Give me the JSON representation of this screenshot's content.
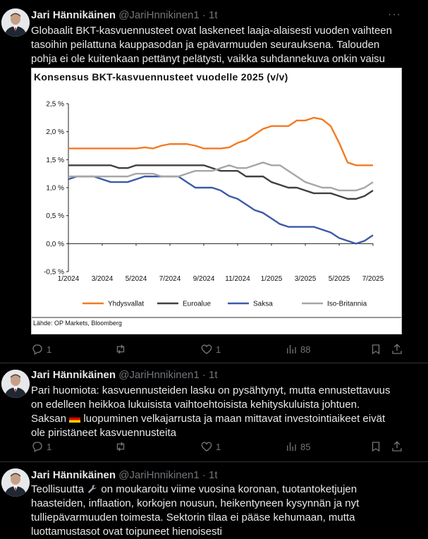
{
  "tweets": [
    {
      "author": "Jari Hännikäinen",
      "handle": "@JariHnnikinen1",
      "time": "· 1t",
      "text": "Globaalit BKT-kasvuennusteet ovat laskeneet laaja-alaisesti vuoden vaihteen tasoihin peilattuna kauppasodan ja epävarmuuden seurauksena. Talouden pohja ei ole kuitenkaan pettänyt pelätysti, vaikka suhdannekuva onkin vaisu",
      "replies": "1",
      "reposts": "",
      "likes": "1",
      "views": "88"
    },
    {
      "author": "Jari Hännikäinen",
      "handle": "@JariHnnikinen1",
      "time": "· 1t",
      "text_before_flag": "Pari huomiota: kasvuennusteiden lasku on pysähtynyt, mutta ennustettavuus on edelleen heikkoa lukuisista vaihtoehtoisista kehityskuluista johtuen. Saksan",
      "flag_icon": "germany-flag-icon",
      "text_after_flag": "luopuminen velkajarrusta ja maan mittavat investointiaikeet eivät ole piristäneet kasvuennusteita",
      "replies": "1",
      "reposts": "",
      "likes": "1",
      "views": "85"
    },
    {
      "author": "Jari Hännikäinen",
      "handle": "@JariHnnikinen1",
      "time": "· 1t",
      "text_before_icon": "Teollisuutta",
      "inline_icon": "wrench-icon",
      "text_after_icon": "on moukaroitu viime vuosina koronan, tuotantoketjujen haasteiden, inflaation, korkojen nousun, heikentyneen kysynnän ja nyt tulliepävarmuuden toimesta. Sektorin tilaa ei pääse kehumaan, mutta luottamustasot ovat toipuneet hienoisesti"
    }
  ],
  "chart_data": {
    "type": "line",
    "title": "Konsensus BKT-kasvuennusteet vuodelle 2025 (v/v)",
    "source": "Lähde: OP Markets, Bloomberg",
    "x_labels": [
      "1/2024",
      "3/2024",
      "5/2024",
      "7/2024",
      "9/2024",
      "11/2024",
      "1/2025",
      "3/2025",
      "5/2025",
      "7/2025"
    ],
    "y_ticks": [
      "2,5 %",
      "2,0 %",
      "1,5 %",
      "1,0 %",
      "0,5 %",
      "0,0 %",
      "-0,5 %"
    ],
    "ylim": [
      -0.5,
      2.5
    ],
    "grid": false,
    "legend_position": "bottom",
    "x": [
      0,
      0.5,
      1,
      1.5,
      2,
      2.5,
      3,
      3.5,
      4,
      4.5,
      5,
      5.5,
      6,
      6.5,
      7,
      7.5,
      8,
      8.5,
      9,
      9.5,
      10,
      10.5,
      11,
      11.5,
      12,
      12.5,
      13,
      13.5,
      14,
      14.5,
      15,
      15.5,
      16,
      16.5,
      17,
      17.5,
      18
    ],
    "series": [
      {
        "name": "Yhdysvallat",
        "color": "#f47a20",
        "values": [
          1.7,
          1.7,
          1.7,
          1.7,
          1.7,
          1.7,
          1.7,
          1.7,
          1.7,
          1.72,
          1.7,
          1.75,
          1.78,
          1.78,
          1.78,
          1.75,
          1.7,
          1.7,
          1.7,
          1.72,
          1.8,
          1.85,
          1.95,
          2.05,
          2.1,
          2.1,
          2.1,
          2.2,
          2.2,
          2.25,
          2.22,
          2.1,
          1.8,
          1.45,
          1.4,
          1.4,
          1.4
        ]
      },
      {
        "name": "Euroalue",
        "color": "#404040",
        "values": [
          1.4,
          1.4,
          1.4,
          1.4,
          1.4,
          1.4,
          1.35,
          1.35,
          1.4,
          1.4,
          1.4,
          1.4,
          1.4,
          1.4,
          1.4,
          1.4,
          1.4,
          1.35,
          1.3,
          1.3,
          1.3,
          1.2,
          1.2,
          1.2,
          1.1,
          1.05,
          1.0,
          1.0,
          0.95,
          0.9,
          0.9,
          0.9,
          0.85,
          0.8,
          0.8,
          0.85,
          0.95
        ]
      },
      {
        "name": "Saksa",
        "color": "#3a5ba8",
        "values": [
          1.15,
          1.2,
          1.2,
          1.2,
          1.15,
          1.1,
          1.1,
          1.1,
          1.15,
          1.2,
          1.2,
          1.2,
          1.2,
          1.2,
          1.1,
          1.0,
          1.0,
          1.0,
          0.95,
          0.85,
          0.8,
          0.7,
          0.6,
          0.55,
          0.45,
          0.35,
          0.3,
          0.3,
          0.3,
          0.3,
          0.25,
          0.2,
          0.1,
          0.05,
          0.0,
          0.05,
          0.15
        ]
      },
      {
        "name": "Iso-Britannia",
        "color": "#a6a6a6",
        "values": [
          1.2,
          1.2,
          1.2,
          1.2,
          1.2,
          1.2,
          1.2,
          1.2,
          1.25,
          1.25,
          1.25,
          1.2,
          1.2,
          1.2,
          1.25,
          1.3,
          1.3,
          1.3,
          1.35,
          1.4,
          1.35,
          1.35,
          1.4,
          1.45,
          1.4,
          1.4,
          1.3,
          1.2,
          1.1,
          1.05,
          1.0,
          1.0,
          0.95,
          0.95,
          0.95,
          1.0,
          1.1
        ]
      }
    ]
  }
}
